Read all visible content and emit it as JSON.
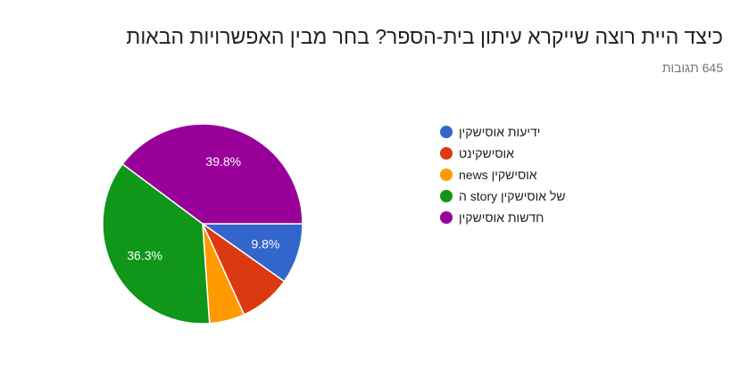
{
  "form": {
    "question": "כיצד היית רוצה שייקרא עיתון בית-הספר? בחר מבין האפשרויות הבאות",
    "responses": "645 תגובות"
  },
  "chart_data": {
    "type": "pie",
    "categories": [
      "ידיעות אוסישקין",
      "אוסישקינט",
      "news אוסישקין",
      "של אוסישקין story ה",
      "חדשות אוסישקין"
    ],
    "values": [
      9.8,
      8.4,
      5.7,
      36.3,
      39.8
    ],
    "colors": [
      "#3366cc",
      "#dc3912",
      "#ff9900",
      "#109618",
      "#990099"
    ],
    "data_labels": [
      "9.8%",
      "",
      "",
      "36.3%",
      "39.8%"
    ],
    "legend_position": "right"
  }
}
